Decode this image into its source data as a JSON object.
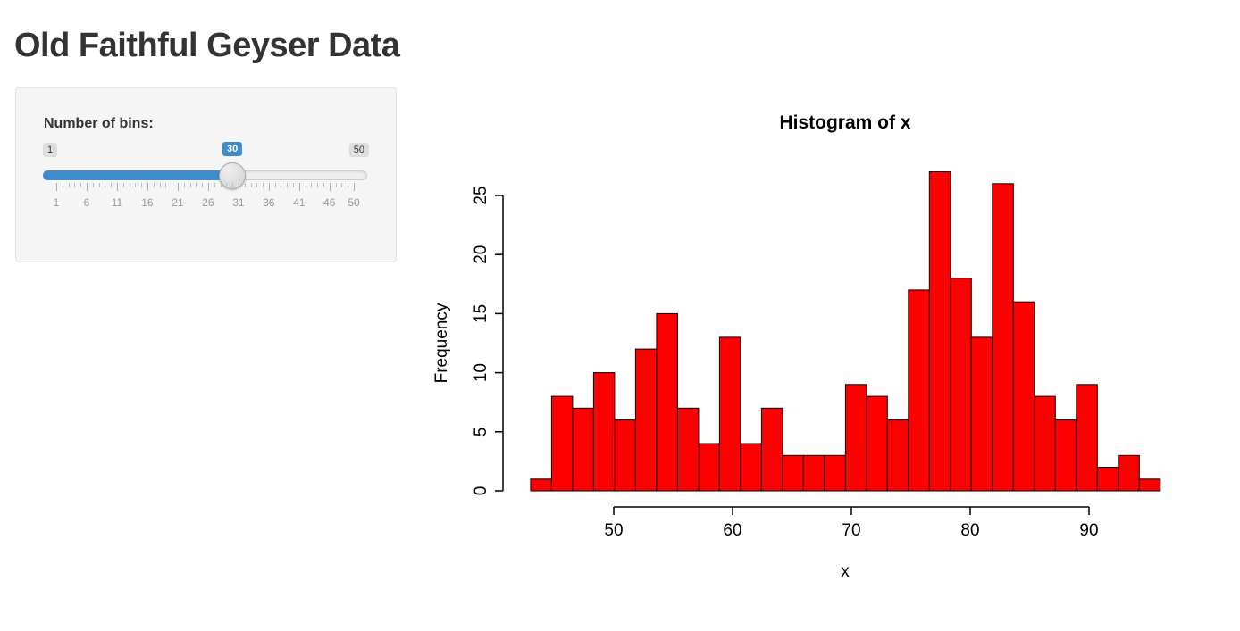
{
  "page": {
    "title": "Old Faithful Geyser Data"
  },
  "sidebar": {
    "slider": {
      "label": "Number of bins:",
      "min": 1,
      "max": 50,
      "value": 30,
      "min_label": "1",
      "max_label": "50",
      "value_label": "30",
      "tick_labels": [
        "1",
        "6",
        "11",
        "16",
        "21",
        "26",
        "31",
        "36",
        "41",
        "46",
        "50"
      ],
      "accent_color": "#428bca"
    }
  },
  "chart_data": {
    "type": "bar",
    "variant": "histogram",
    "title": "Histogram of x",
    "xlabel": "x",
    "ylabel": "Frequency",
    "bin_start": 43,
    "bin_width": 1.7666667,
    "counts": [
      1,
      8,
      7,
      10,
      6,
      12,
      15,
      7,
      4,
      13,
      4,
      7,
      3,
      3,
      3,
      9,
      8,
      6,
      17,
      27,
      18,
      13,
      26,
      16,
      8,
      6,
      9,
      2,
      3,
      1
    ],
    "x_ticks": [
      50,
      60,
      70,
      80,
      90
    ],
    "y_ticks": [
      0,
      5,
      10,
      15,
      20,
      25
    ],
    "xlim": [
      43,
      96
    ],
    "ylim": [
      0,
      27
    ],
    "bar_fill": "#fe0000",
    "bar_border": "#0a0000",
    "grid": false,
    "legend": "none"
  }
}
